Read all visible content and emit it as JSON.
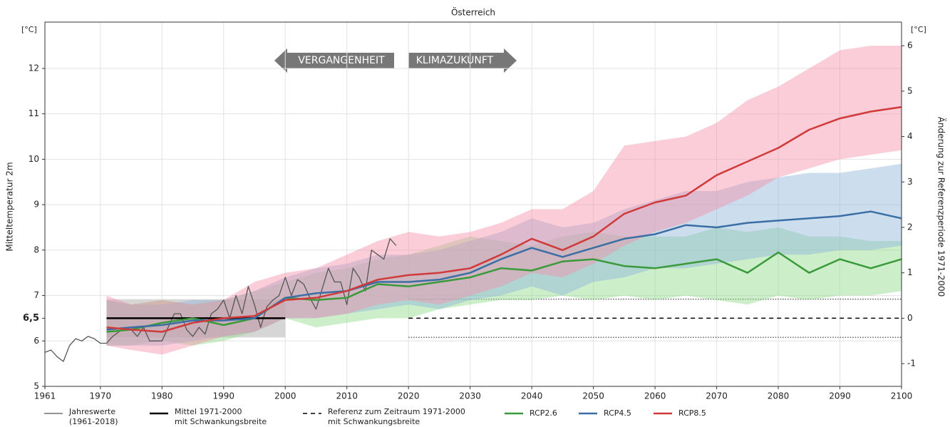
{
  "chart_data": {
    "type": "line",
    "title": "Österreich",
    "ylabel": "Mitteltemperatur 2m",
    "y2label": "Änderung zur Referenzperiode 1971-2000",
    "yunit": "[°C]",
    "y2unit": "[°C]",
    "xlim": [
      1961,
      2100
    ],
    "xticks": [
      1961,
      1970,
      1980,
      1990,
      2000,
      2010,
      2020,
      2030,
      2040,
      2050,
      2060,
      2070,
      2080,
      2090,
      2100
    ],
    "ylim": [
      5,
      13.02
    ],
    "yticks": [
      5,
      6,
      7,
      8,
      9,
      10,
      11,
      12
    ],
    "y2lim": [
      -1.5,
      6.52
    ],
    "y2ticks": [
      -1,
      0,
      1,
      2,
      3,
      4,
      5,
      6
    ],
    "grid": true,
    "reference_mark": {
      "value": 6.5,
      "label": "6,5"
    },
    "arrows": [
      {
        "text": "VERGANGENHEIT",
        "direction": "left"
      },
      {
        "text": "KLIMAZUKUNFT",
        "direction": "right"
      }
    ],
    "series": [
      {
        "name": "Jahreswerte",
        "name2": "(1961-2018)",
        "color": "#555555",
        "width": 1.3,
        "x": [
          1961,
          1962,
          1963,
          1964,
          1965,
          1966,
          1967,
          1968,
          1969,
          1970,
          1971,
          1972,
          1973,
          1974,
          1975,
          1976,
          1977,
          1978,
          1979,
          1980,
          1981,
          1982,
          1983,
          1984,
          1985,
          1986,
          1987,
          1988,
          1989,
          1990,
          1991,
          1992,
          1993,
          1994,
          1995,
          1996,
          1997,
          1998,
          1999,
          2000,
          2001,
          2002,
          2003,
          2004,
          2005,
          2006,
          2007,
          2008,
          2009,
          2010,
          2011,
          2012,
          2013,
          2014,
          2015,
          2016,
          2017,
          2018
        ],
        "values": [
          5.75,
          5.8,
          5.65,
          5.55,
          5.9,
          6.05,
          6.0,
          6.1,
          6.05,
          5.95,
          5.95,
          6.1,
          6.2,
          6.3,
          6.25,
          6.1,
          6.3,
          6.0,
          6.0,
          6.0,
          6.3,
          6.6,
          6.6,
          6.25,
          6.1,
          6.3,
          6.15,
          6.6,
          6.7,
          6.9,
          6.5,
          7.0,
          6.6,
          7.2,
          6.8,
          6.3,
          6.75,
          6.9,
          7.0,
          7.4,
          7.0,
          7.35,
          7.25,
          6.95,
          6.7,
          7.15,
          7.6,
          7.3,
          7.3,
          6.8,
          7.6,
          7.4,
          7.1,
          8.0,
          7.9,
          7.8,
          8.25,
          8.1
        ]
      },
      {
        "name": "Mittel 1971-2000",
        "name2": "mit Schwankungsbreite",
        "color": "#000000",
        "width": 2.5,
        "band_style": "fill",
        "band_color": "#c8c8c8",
        "x": [
          1971,
          2000
        ],
        "values": [
          6.5,
          6.5
        ],
        "lower": [
          6.08,
          6.08
        ],
        "upper": [
          6.92,
          6.92
        ]
      },
      {
        "name": "Referenz zum Zeitraum 1971-2000",
        "name2": "mit Schwankungsbreite",
        "color": "#000000",
        "width": 1.5,
        "dash": "6,5",
        "band_style": "dotted",
        "band_color": "#333333",
        "x": [
          2020,
          2100
        ],
        "values": [
          6.5,
          6.5
        ],
        "lower": [
          6.08,
          6.08
        ],
        "upper": [
          6.92,
          6.92
        ]
      },
      {
        "name": "RCP2.6",
        "color": "#3a9a3a",
        "width": 2.5,
        "band_style": "fill",
        "band_color": "#8fdc8a",
        "x": [
          1971,
          1975,
          1980,
          1985,
          1990,
          1995,
          2000,
          2005,
          2010,
          2015,
          2020,
          2025,
          2030,
          2035,
          2040,
          2045,
          2050,
          2055,
          2060,
          2065,
          2070,
          2075,
          2080,
          2085,
          2090,
          2095,
          2100
        ],
        "values": [
          6.2,
          6.25,
          6.4,
          6.5,
          6.35,
          6.5,
          6.95,
          6.9,
          6.95,
          7.25,
          7.2,
          7.3,
          7.4,
          7.6,
          7.55,
          7.75,
          7.8,
          7.65,
          7.6,
          7.7,
          7.8,
          7.5,
          7.95,
          7.5,
          7.8,
          7.6,
          7.8
        ],
        "lower": [
          5.9,
          5.9,
          6.0,
          5.9,
          6.0,
          6.2,
          6.5,
          6.3,
          6.4,
          6.5,
          6.5,
          6.7,
          6.8,
          6.9,
          6.9,
          7.0,
          6.9,
          7.0,
          6.9,
          7.0,
          6.9,
          6.8,
          7.0,
          6.9,
          7.0,
          7.0,
          7.1
        ],
        "upper": [
          6.9,
          6.8,
          6.9,
          6.8,
          6.9,
          7.1,
          7.3,
          7.5,
          7.6,
          7.8,
          7.9,
          8.1,
          8.3,
          8.2,
          8.1,
          8.3,
          8.4,
          8.3,
          8.3,
          8.3,
          8.5,
          8.4,
          8.5,
          8.3,
          8.3,
          8.2,
          8.2
        ]
      },
      {
        "name": "RCP4.5",
        "color": "#3a6ea5",
        "width": 2.5,
        "band_style": "fill",
        "band_color": "#8fb3d9",
        "x": [
          1971,
          1975,
          1980,
          1985,
          1990,
          1995,
          2000,
          2005,
          2010,
          2015,
          2020,
          2025,
          2030,
          2035,
          2040,
          2045,
          2050,
          2055,
          2060,
          2065,
          2070,
          2075,
          2080,
          2085,
          2090,
          2095,
          2100
        ],
        "values": [
          6.25,
          6.3,
          6.35,
          6.45,
          6.45,
          6.5,
          6.95,
          7.05,
          7.1,
          7.3,
          7.3,
          7.35,
          7.5,
          7.8,
          8.05,
          7.85,
          8.05,
          8.25,
          8.35,
          8.55,
          8.5,
          8.6,
          8.65,
          8.7,
          8.75,
          8.85,
          8.7
        ],
        "lower": [
          5.9,
          5.9,
          5.9,
          6.0,
          6.1,
          6.2,
          6.5,
          6.5,
          6.6,
          6.7,
          6.8,
          6.7,
          6.9,
          7.0,
          7.2,
          7.0,
          7.3,
          7.4,
          7.6,
          7.6,
          7.7,
          7.8,
          7.9,
          7.9,
          8.0,
          8.0,
          8.1
        ],
        "upper": [
          6.9,
          6.8,
          6.8,
          6.9,
          6.9,
          7.1,
          7.4,
          7.6,
          7.7,
          7.9,
          7.9,
          8.0,
          8.2,
          8.4,
          8.7,
          8.5,
          8.6,
          8.9,
          9.1,
          9.3,
          9.3,
          9.5,
          9.6,
          9.7,
          9.7,
          9.8,
          9.9
        ]
      },
      {
        "name": "RCP8.5",
        "color": "#d03a3a",
        "width": 2.5,
        "band_style": "fill",
        "band_color": "#f590a8",
        "x": [
          1971,
          1975,
          1980,
          1985,
          1990,
          1995,
          2000,
          2005,
          2010,
          2015,
          2020,
          2025,
          2030,
          2035,
          2040,
          2045,
          2050,
          2055,
          2060,
          2065,
          2070,
          2075,
          2080,
          2085,
          2090,
          2095,
          2100
        ],
        "values": [
          6.3,
          6.25,
          6.2,
          6.4,
          6.5,
          6.55,
          6.9,
          6.95,
          7.1,
          7.35,
          7.45,
          7.5,
          7.6,
          7.9,
          8.25,
          8.0,
          8.3,
          8.8,
          9.05,
          9.2,
          9.65,
          9.95,
          10.25,
          10.65,
          10.9,
          11.05,
          11.15
        ],
        "lower": [
          5.9,
          5.8,
          5.7,
          5.9,
          6.1,
          6.2,
          6.5,
          6.5,
          6.6,
          6.8,
          6.9,
          6.8,
          7.0,
          7.2,
          7.5,
          7.4,
          7.7,
          8.1,
          8.4,
          8.6,
          8.9,
          9.2,
          9.6,
          9.8,
          10.0,
          10.1,
          10.2
        ],
        "upper": [
          7.0,
          6.8,
          6.9,
          6.8,
          6.9,
          7.3,
          7.5,
          7.6,
          7.9,
          8.2,
          8.4,
          8.3,
          8.4,
          8.6,
          8.9,
          8.9,
          9.3,
          10.3,
          10.4,
          10.5,
          10.8,
          11.3,
          11.6,
          12.0,
          12.4,
          12.5,
          12.5
        ]
      }
    ]
  }
}
